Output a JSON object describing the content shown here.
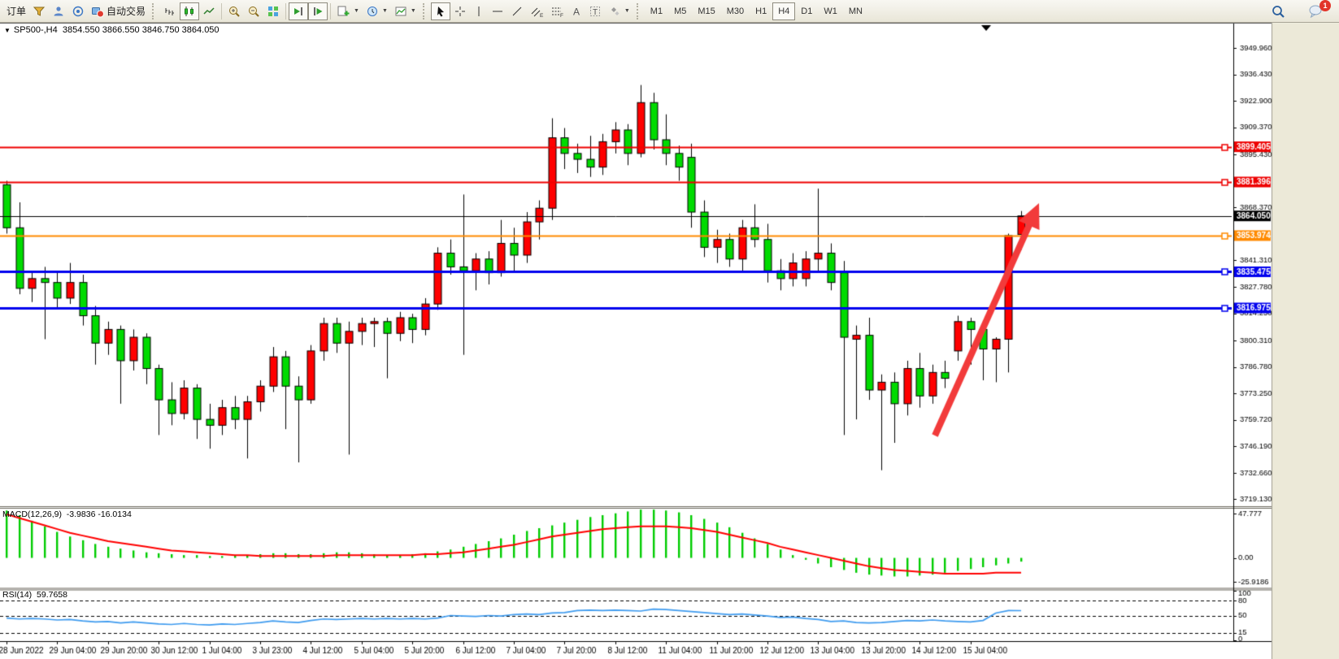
{
  "toolbar": {
    "orders_label": "订单",
    "autotrading_label": "自动交易",
    "timeframes": [
      "M1",
      "M5",
      "M15",
      "M30",
      "H1",
      "H4",
      "D1",
      "W1",
      "MN"
    ],
    "active_timeframe": "H4",
    "notification_badge": "1",
    "tool_letters": {
      "channel": "E",
      "fibo": "F",
      "text": "A",
      "label": "T"
    }
  },
  "chart": {
    "title_marker": "▼",
    "title_symbol": "SP500-,H4",
    "title_ohlc": "3854.550 3866.550 3846.750 3864.050"
  },
  "indicators": {
    "macd": {
      "name": "MACD(12,26,9)",
      "values": "-3.9836 -16.0134"
    },
    "rsi": {
      "name": "RSI(14)",
      "values": "59.7658"
    }
  },
  "chart_data": {
    "type": "candlestick",
    "symbol": "SP500-",
    "timeframe": "H4",
    "title": "SP500-,H4 3854.550 3866.550 3846.750 3864.050",
    "ylim": [
      3716,
      3962
    ],
    "grid": false,
    "up_color_meaning": "red = bullish, green = bearish (Chinese convention)",
    "y_ticks": [
      [
        3949.96,
        "3949.960"
      ],
      [
        3936.43,
        "3936.430"
      ],
      [
        3922.9,
        "3922.900"
      ],
      [
        3909.37,
        "3909.370"
      ],
      [
        3895.43,
        "3895.430"
      ],
      [
        3868.37,
        "3868.370"
      ],
      [
        3841.31,
        "3841.310"
      ],
      [
        3827.78,
        "3827.780"
      ],
      [
        3814.25,
        "3814.250"
      ],
      [
        3800.31,
        "3800.310"
      ],
      [
        3786.78,
        "3786.780"
      ],
      [
        3773.25,
        "3773.250"
      ],
      [
        3759.72,
        "3759.720"
      ],
      [
        3746.19,
        "3746.190"
      ],
      [
        3732.66,
        "3732.660"
      ],
      [
        3719.13,
        "3719.130"
      ]
    ],
    "price_lines": [
      {
        "price": 3899.405,
        "label": "3899.405",
        "color": "#EE0000",
        "width": 2,
        "marker": true
      },
      {
        "price": 3881.396,
        "label": "3881.396",
        "color": "#EE0000",
        "width": 2,
        "marker": true
      },
      {
        "price": 3864.05,
        "label": "3864.050",
        "color": "#000000",
        "width": 1,
        "marker": false
      },
      {
        "price": 3853.974,
        "label": "3853.974",
        "color": "#FF8A00",
        "width": 2,
        "marker": true
      },
      {
        "price": 3835.475,
        "label": "3835.475",
        "color": "#0000EE",
        "width": 3,
        "marker": true
      },
      {
        "price": 3816.975,
        "label": "3816.975",
        "color": "#0000EE",
        "width": 3,
        "marker": true
      }
    ],
    "candles": [
      [
        3880,
        3882,
        3855,
        3858
      ],
      [
        3858,
        3871,
        3824,
        3827
      ],
      [
        3827,
        3836,
        3820,
        3832
      ],
      [
        3832,
        3838,
        3801,
        3830
      ],
      [
        3830,
        3836,
        3817,
        3822
      ],
      [
        3822,
        3840,
        3819,
        3830
      ],
      [
        3830,
        3834,
        3808,
        3813
      ],
      [
        3813,
        3818,
        3788,
        3799
      ],
      [
        3799,
        3810,
        3793,
        3806
      ],
      [
        3806,
        3808,
        3768,
        3790
      ],
      [
        3790,
        3806,
        3785,
        3802
      ],
      [
        3802,
        3804,
        3778,
        3786
      ],
      [
        3786,
        3788,
        3752,
        3770
      ],
      [
        3770,
        3779,
        3757,
        3763
      ],
      [
        3763,
        3780,
        3760,
        3776
      ],
      [
        3776,
        3778,
        3750,
        3760
      ],
      [
        3760,
        3768,
        3745,
        3757
      ],
      [
        3757,
        3770,
        3752,
        3766
      ],
      [
        3766,
        3772,
        3755,
        3760
      ],
      [
        3760,
        3772,
        3740,
        3769
      ],
      [
        3769,
        3780,
        3764,
        3777
      ],
      [
        3777,
        3797,
        3774,
        3792
      ],
      [
        3792,
        3795,
        3755,
        3777
      ],
      [
        3777,
        3782,
        3738,
        3770
      ],
      [
        3770,
        3798,
        3768,
        3795
      ],
      [
        3795,
        3812,
        3790,
        3809
      ],
      [
        3809,
        3812,
        3794,
        3799
      ],
      [
        3799,
        3810,
        3742,
        3805
      ],
      [
        3805,
        3812,
        3798,
        3809
      ],
      [
        3809,
        3812,
        3797,
        3810
      ],
      [
        3810,
        3812,
        3781,
        3804
      ],
      [
        3804,
        3815,
        3800,
        3812
      ],
      [
        3812,
        3814,
        3799,
        3806
      ],
      [
        3806,
        3822,
        3803,
        3819
      ],
      [
        3819,
        3848,
        3816,
        3845
      ],
      [
        3845,
        3852,
        3834,
        3838
      ],
      [
        3838,
        3875,
        3793,
        3836
      ],
      [
        3836,
        3845,
        3826,
        3842
      ],
      [
        3842,
        3846,
        3829,
        3835
      ],
      [
        3835,
        3862,
        3833,
        3850
      ],
      [
        3850,
        3858,
        3836,
        3844
      ],
      [
        3844,
        3866,
        3840,
        3861
      ],
      [
        3861,
        3872,
        3852,
        3868
      ],
      [
        3868,
        3914,
        3862,
        3904
      ],
      [
        3904,
        3909,
        3888,
        3896
      ],
      [
        3896,
        3901,
        3886,
        3893
      ],
      [
        3893,
        3905,
        3884,
        3889
      ],
      [
        3889,
        3906,
        3885,
        3902
      ],
      [
        3902,
        3912,
        3896,
        3908
      ],
      [
        3908,
        3911,
        3890,
        3896
      ],
      [
        3896,
        3931,
        3894,
        3922
      ],
      [
        3922,
        3927,
        3898,
        3903
      ],
      [
        3903,
        3916,
        3890,
        3896
      ],
      [
        3896,
        3900,
        3882,
        3889
      ],
      [
        3894,
        3901,
        3858,
        3866
      ],
      [
        3866,
        3872,
        3843,
        3848
      ],
      [
        3848,
        3857,
        3840,
        3852
      ],
      [
        3852,
        3855,
        3838,
        3842
      ],
      [
        3842,
        3862,
        3836,
        3858
      ],
      [
        3858,
        3870,
        3848,
        3852
      ],
      [
        3852,
        3860,
        3830,
        3836
      ],
      [
        3836,
        3842,
        3826,
        3832
      ],
      [
        3832,
        3845,
        3828,
        3840
      ],
      [
        3832,
        3846,
        3828,
        3842
      ],
      [
        3842,
        3878,
        3836,
        3845
      ],
      [
        3845,
        3850,
        3826,
        3830
      ],
      [
        3835,
        3841,
        3752,
        3802
      ],
      [
        3801,
        3808,
        3760,
        3803
      ],
      [
        3803,
        3812,
        3770,
        3775
      ],
      [
        3775,
        3783,
        3734,
        3779
      ],
      [
        3779,
        3784,
        3748,
        3768
      ],
      [
        3768,
        3790,
        3762,
        3786
      ],
      [
        3786,
        3794,
        3766,
        3772
      ],
      [
        3772,
        3788,
        3768,
        3784
      ],
      [
        3784,
        3790,
        3776,
        3781
      ],
      [
        3795,
        3813,
        3790,
        3810
      ],
      [
        3810,
        3812,
        3788,
        3806
      ],
      [
        3806,
        3810,
        3780,
        3796
      ],
      [
        3796,
        3802,
        3779,
        3801
      ],
      [
        3801,
        3855,
        3784,
        3854
      ],
      [
        3854.55,
        3866.55,
        3846.75,
        3864.05
      ]
    ],
    "x_labels": [
      {
        "bar": 0,
        "text": "28 Jun 2022"
      },
      {
        "bar": 4,
        "text": "29 Jun 04:00"
      },
      {
        "bar": 8,
        "text": "29 Jun 20:00"
      },
      {
        "bar": 12,
        "text": "30 Jun 12:00"
      },
      {
        "bar": 16,
        "text": "1 Jul 04:00"
      },
      {
        "bar": 20,
        "text": "3 Jul 23:00"
      },
      {
        "bar": 24,
        "text": "4 Jul 12:00"
      },
      {
        "bar": 28,
        "text": "5 Jul 04:00"
      },
      {
        "bar": 32,
        "text": "5 Jul 20:00"
      },
      {
        "bar": 36,
        "text": "6 Jul 12:00"
      },
      {
        "bar": 40,
        "text": "7 Jul 04:00"
      },
      {
        "bar": 44,
        "text": "7 Jul 20:00"
      },
      {
        "bar": 48,
        "text": "8 Jul 12:00"
      },
      {
        "bar": 52,
        "text": "11 Jul 04:00"
      },
      {
        "bar": 56,
        "text": "11 Jul 20:00"
      },
      {
        "bar": 60,
        "text": "12 Jul 12:00"
      },
      {
        "bar": 64,
        "text": "13 Jul 04:00"
      },
      {
        "bar": 68,
        "text": "13 Jul 20:00"
      },
      {
        "bar": 72,
        "text": "14 Jul 12:00"
      },
      {
        "bar": 76,
        "text": "15 Jul 04:00"
      }
    ],
    "macd": {
      "params": "12,26,9",
      "current_hist": -3.9836,
      "current_signal": -16.0134,
      "ylim": [
        -31,
        53
      ],
      "y_ticks": [
        [
          47.777,
          "47.777"
        ],
        [
          0,
          "0.00"
        ],
        [
          -25.9186,
          "-25.9186"
        ]
      ],
      "hist": [
        51,
        46,
        40,
        34,
        28,
        23,
        19,
        15,
        12,
        10,
        8,
        6,
        5,
        4,
        3,
        3,
        2,
        2,
        3,
        3,
        4,
        5,
        5,
        4,
        4,
        5,
        6,
        6,
        5,
        4,
        3,
        3,
        4,
        5,
        7,
        9,
        12,
        15,
        18,
        21,
        25,
        29,
        32,
        35,
        38,
        41,
        44,
        46,
        48,
        50,
        52,
        52,
        51,
        49,
        46,
        42,
        38,
        33,
        27,
        21,
        15,
        9,
        3,
        -2,
        -6,
        -10,
        -13,
        -16,
        -18,
        -19,
        -20,
        -20,
        -19,
        -18,
        -16,
        -14,
        -12,
        -10,
        -8,
        -6,
        -4
      ],
      "signal": [
        47,
        43,
        39,
        35,
        31,
        27,
        24,
        21,
        18,
        16,
        14,
        12,
        10,
        8,
        7,
        6,
        5,
        4,
        3,
        3,
        2,
        2,
        2,
        2,
        2,
        2,
        3,
        3,
        3,
        3,
        3,
        3,
        3,
        4,
        4,
        5,
        6,
        8,
        10,
        12,
        14,
        17,
        20,
        23,
        25,
        27,
        29,
        31,
        32,
        33,
        34,
        34,
        34,
        33,
        32,
        30,
        28,
        25,
        22,
        19,
        16,
        12,
        9,
        6,
        3,
        0,
        -3,
        -6,
        -9,
        -11,
        -13,
        -14,
        -15,
        -16,
        -17,
        -17,
        -17,
        -17,
        -16,
        -16,
        -16
      ]
    },
    "rsi": {
      "period": 14,
      "current": 59.7658,
      "ylim": [
        0,
        100
      ],
      "levels": [
        80,
        50,
        15
      ],
      "y_ticks": [
        [
          100,
          "100"
        ],
        [
          80,
          "80"
        ],
        [
          50,
          "50"
        ],
        [
          15,
          "15"
        ],
        [
          0,
          "0"
        ]
      ],
      "values": [
        45,
        43,
        44,
        43,
        41,
        42,
        39,
        37,
        38,
        35,
        37,
        35,
        33,
        32,
        34,
        32,
        31,
        33,
        32,
        34,
        36,
        39,
        37,
        36,
        40,
        43,
        42,
        43,
        44,
        43,
        44,
        43,
        44,
        43,
        45,
        50,
        49,
        48,
        50,
        49,
        52,
        53,
        52,
        55,
        56,
        60,
        61,
        60,
        61,
        60,
        59,
        63,
        62,
        60,
        58,
        56,
        54,
        52,
        53,
        51,
        49,
        46,
        47,
        44,
        42,
        38,
        39,
        36,
        35,
        36,
        38,
        40,
        39,
        41,
        39,
        38,
        37,
        40,
        55,
        60,
        59.8
      ]
    },
    "annotation_arrow": {
      "from": [
        1150,
        536
      ],
      "to": [
        1278,
        250
      ],
      "color": "#F23B3B"
    },
    "colors": {
      "up": "#FF0000",
      "down": "#00DB00",
      "wick": "#000000",
      "macd_hist": "#00CC00",
      "macd_signal": "#FF0000",
      "rsi_line": "#3E9BEF",
      "background": "#FFFFFF",
      "axis_text": "#000000"
    }
  }
}
